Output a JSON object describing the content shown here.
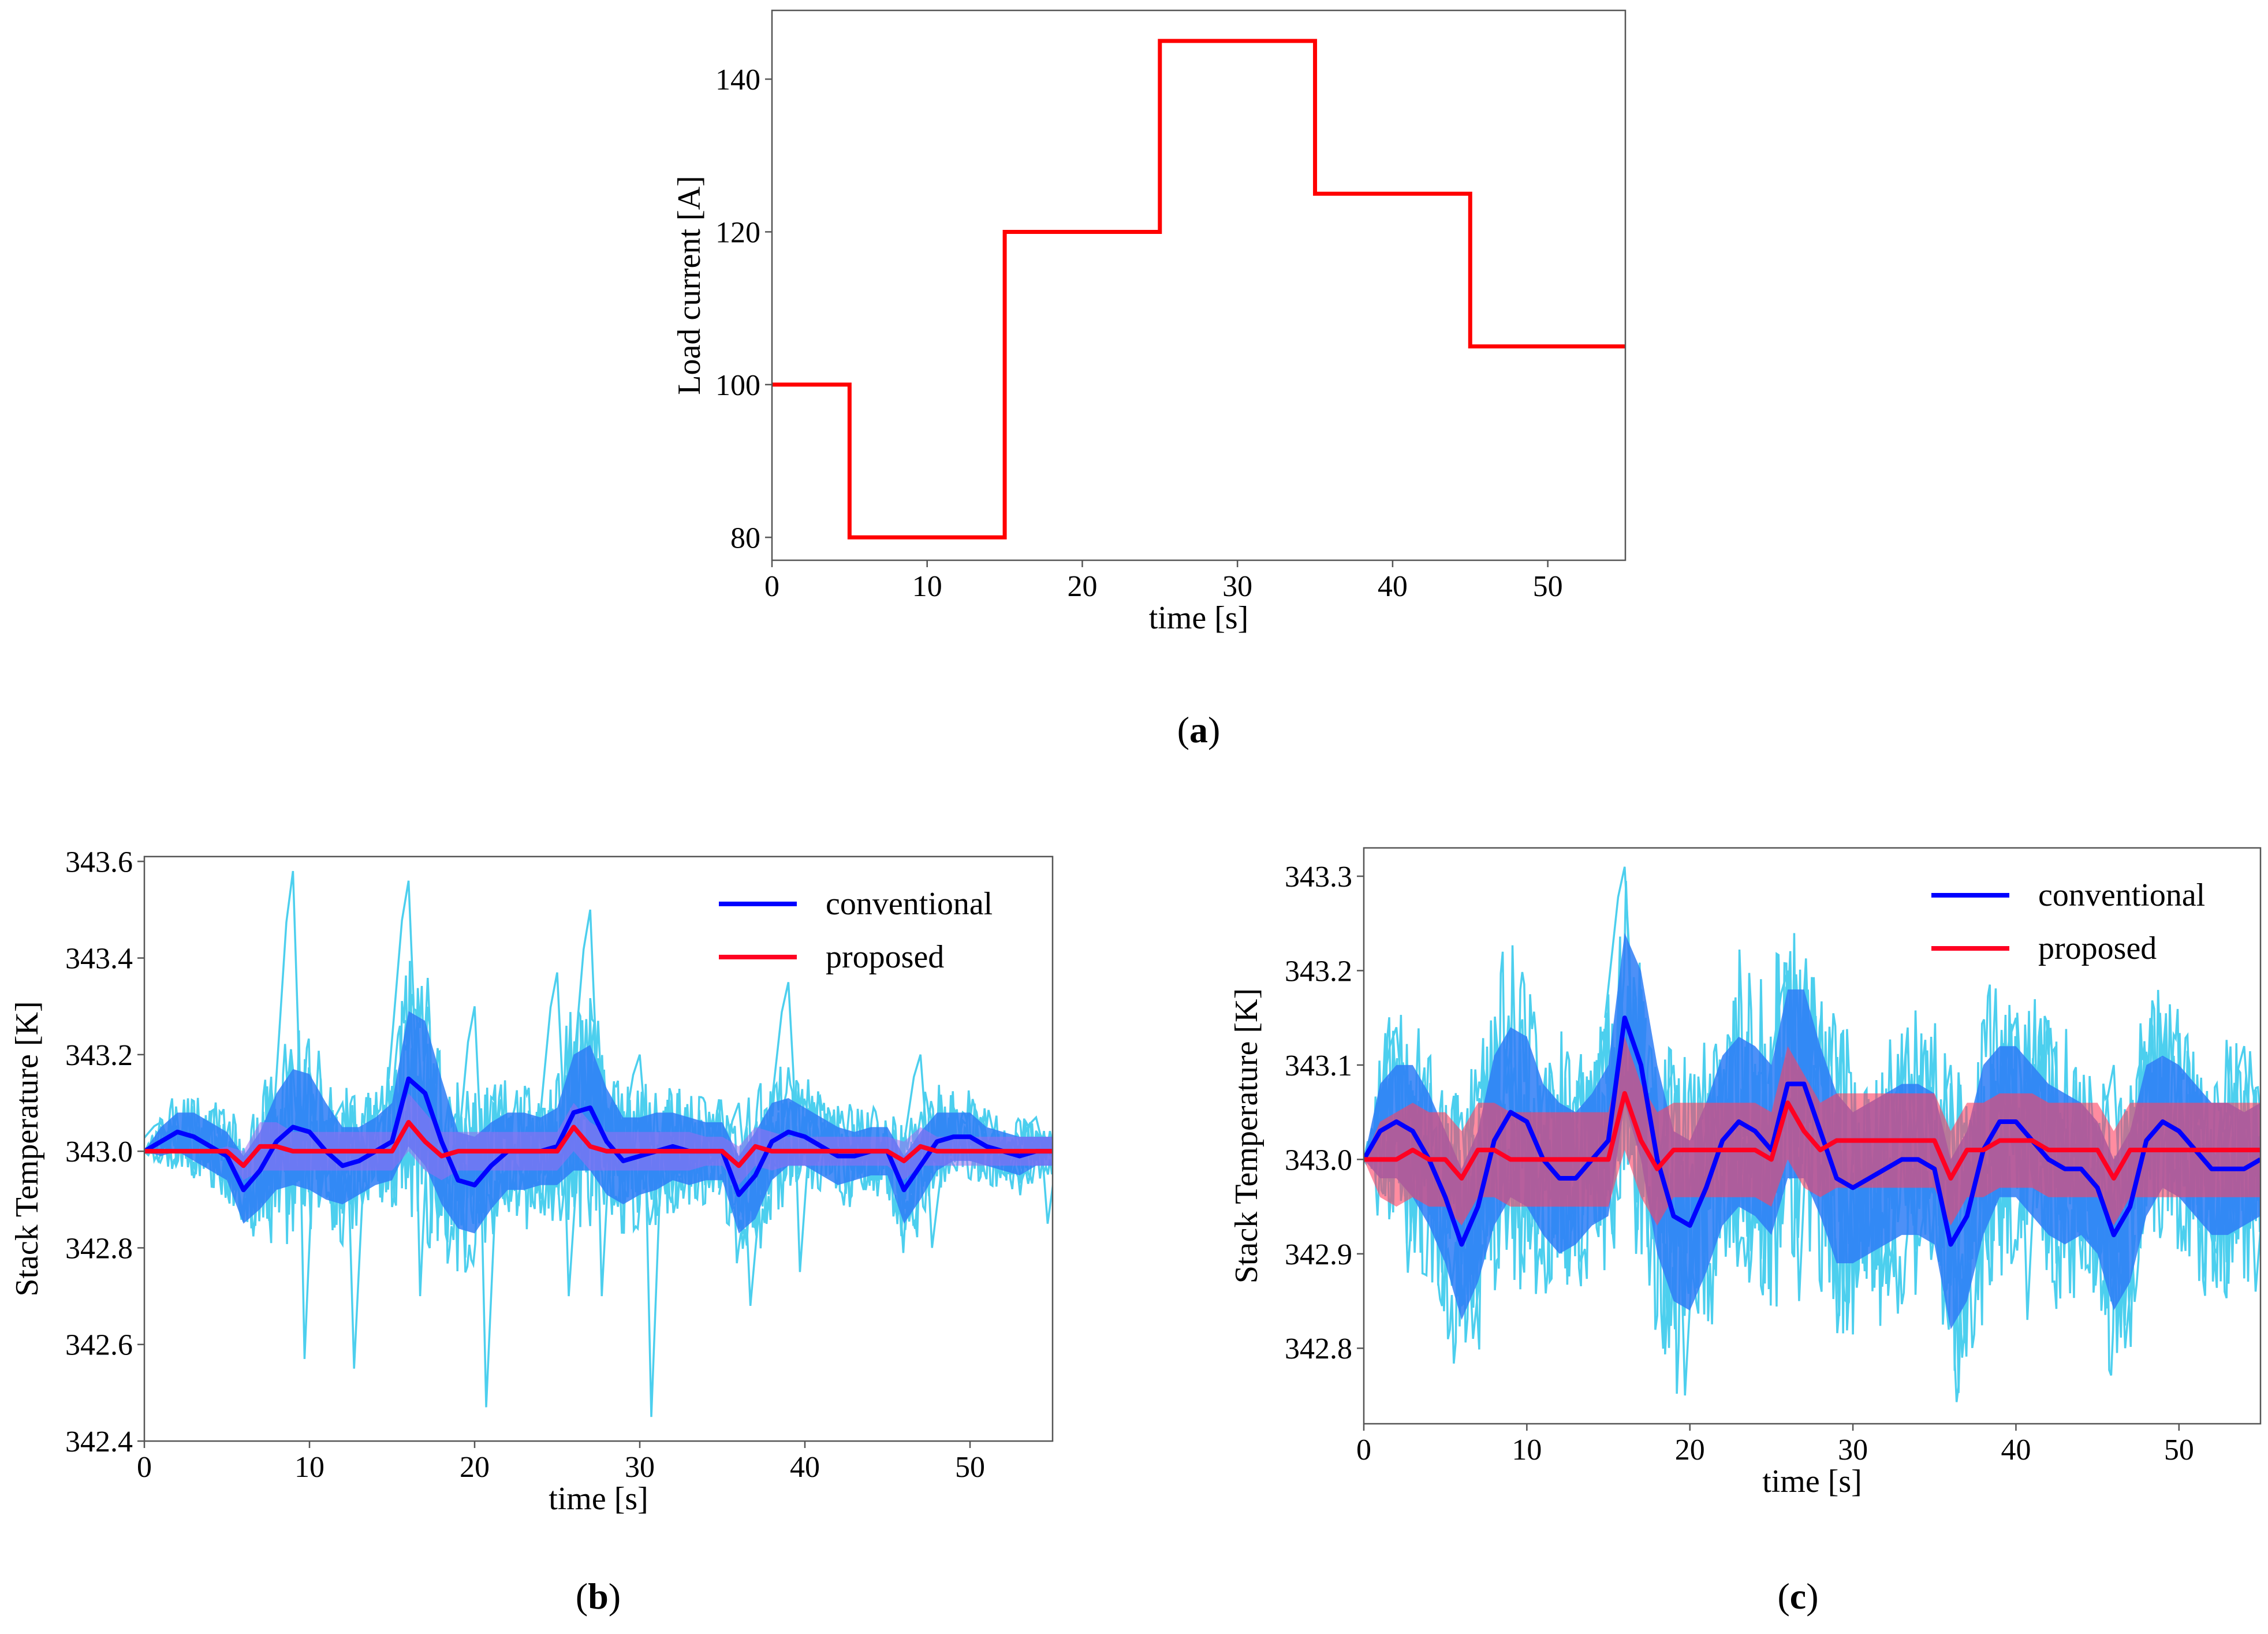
{
  "colors": {
    "step_line": "#ff0000",
    "conventional_mean": "#0000ff",
    "conventional_band": "#2e7cf6",
    "conventional_traces": "#4ccfee",
    "proposed_mean": "#ff0022",
    "proposed_band_b": "#9b6cf0",
    "proposed_band_c": "#ff4060",
    "axis": "#555555"
  },
  "chart_data": [
    {
      "id": "a",
      "type": "line",
      "panel_label": "a",
      "xlabel": "time [s]",
      "ylabel": "Load current [A]",
      "xlim": [
        0,
        55
      ],
      "ylim": [
        77,
        149
      ],
      "xticks": [
        "0",
        "10",
        "20",
        "30",
        "40",
        "50"
      ],
      "yticks": [
        "80",
        "100",
        "120",
        "140"
      ],
      "series": [
        {
          "name": "Load current",
          "style": "step",
          "x": [
            0,
            5,
            5,
            15,
            15,
            25,
            25,
            35,
            35,
            45,
            45,
            55
          ],
          "y": [
            100,
            100,
            80,
            80,
            120,
            120,
            145,
            145,
            125,
            125,
            105,
            105
          ]
        }
      ]
    },
    {
      "id": "b",
      "type": "line",
      "panel_label": "b",
      "xlabel": "time [s]",
      "ylabel": "Stack Temperature [K]",
      "xlim": [
        0,
        55
      ],
      "ylim": [
        342.4,
        343.61
      ],
      "xticks": [
        "0",
        "10",
        "20",
        "30",
        "40",
        "50"
      ],
      "yticks": [
        "342.4",
        "342.6",
        "342.8",
        "343.0",
        "343.2",
        "343.4",
        "343.6"
      ],
      "legend": {
        "position": "top-right",
        "entries": [
          "conventional",
          "proposed"
        ]
      },
      "series": [
        {
          "name": "conventional",
          "x": [
            0,
            1,
            2,
            3,
            4,
            5,
            6,
            7,
            8,
            9,
            10,
            11,
            12,
            13,
            14,
            15,
            16,
            17,
            18,
            19,
            20,
            21,
            22,
            23,
            24,
            25,
            26,
            27,
            28,
            29,
            30,
            31,
            32,
            33,
            34,
            35,
            36,
            37,
            38,
            39,
            40,
            41,
            42,
            43,
            44,
            45,
            46,
            47,
            48,
            49,
            50,
            51,
            52,
            53,
            54,
            55
          ],
          "y": [
            343.0,
            343.02,
            343.04,
            343.03,
            343.01,
            342.99,
            342.92,
            342.96,
            343.02,
            343.05,
            343.04,
            343.0,
            342.97,
            342.98,
            343.0,
            343.02,
            343.15,
            343.12,
            343.02,
            342.94,
            342.93,
            342.97,
            343.0,
            343.0,
            343.0,
            343.01,
            343.08,
            343.09,
            343.02,
            342.98,
            342.99,
            343.0,
            343.01,
            343.0,
            343.0,
            343.0,
            342.91,
            342.95,
            343.02,
            343.04,
            343.03,
            343.01,
            342.99,
            342.99,
            343.0,
            343.0,
            342.92,
            342.97,
            343.02,
            343.03,
            343.03,
            343.01,
            343.0,
            342.99,
            343.0,
            343.0
          ],
          "band_halfwidth": [
            0.0,
            0.03,
            0.04,
            0.05,
            0.05,
            0.05,
            0.07,
            0.08,
            0.1,
            0.12,
            0.12,
            0.1,
            0.08,
            0.07,
            0.07,
            0.08,
            0.14,
            0.15,
            0.13,
            0.1,
            0.1,
            0.09,
            0.08,
            0.08,
            0.07,
            0.08,
            0.12,
            0.13,
            0.11,
            0.09,
            0.08,
            0.08,
            0.07,
            0.07,
            0.06,
            0.06,
            0.08,
            0.09,
            0.08,
            0.07,
            0.06,
            0.06,
            0.06,
            0.05,
            0.05,
            0.05,
            0.07,
            0.07,
            0.06,
            0.05,
            0.05,
            0.04,
            0.04,
            0.04,
            0.03,
            0.03
          ],
          "traces_extent": [
            [
              1,
              343.06,
              342.97
            ],
            [
              9,
              343.58,
              342.57
            ],
            [
              12,
              343.1,
              342.55
            ],
            [
              16,
              343.56,
              342.7
            ],
            [
              20,
              343.3,
              342.47
            ],
            [
              25,
              343.37,
              342.7
            ],
            [
              27,
              343.5,
              342.7
            ],
            [
              30,
              343.2,
              342.45
            ],
            [
              36,
              343.1,
              342.68
            ],
            [
              39,
              343.35,
              342.75
            ],
            [
              47,
              343.2,
              342.8
            ],
            [
              54,
              343.07,
              342.85
            ]
          ]
        },
        {
          "name": "proposed",
          "x": [
            0,
            1,
            2,
            3,
            4,
            5,
            6,
            7,
            8,
            9,
            10,
            11,
            12,
            13,
            14,
            15,
            16,
            17,
            18,
            19,
            20,
            21,
            22,
            23,
            24,
            25,
            26,
            27,
            28,
            29,
            30,
            31,
            32,
            33,
            34,
            35,
            36,
            37,
            38,
            39,
            40,
            41,
            42,
            43,
            44,
            45,
            46,
            47,
            48,
            49,
            50,
            51,
            52,
            53,
            54,
            55
          ],
          "y": [
            343.0,
            343.0,
            343.0,
            343.0,
            343.0,
            343.0,
            342.97,
            343.01,
            343.01,
            343.0,
            343.0,
            343.0,
            343.0,
            343.0,
            343.0,
            343.0,
            343.06,
            343.02,
            342.99,
            343.0,
            343.0,
            343.0,
            343.0,
            343.0,
            343.0,
            343.0,
            343.05,
            343.01,
            343.0,
            343.0,
            343.0,
            343.0,
            343.0,
            343.0,
            343.0,
            343.0,
            342.97,
            343.01,
            343.0,
            343.0,
            343.0,
            343.0,
            343.0,
            343.0,
            343.0,
            343.0,
            342.98,
            343.01,
            343.0,
            343.0,
            343.0,
            343.0,
            343.0,
            343.0,
            343.0,
            343.0
          ],
          "band_halfwidth": [
            0.0,
            0.0,
            0.0,
            0.0,
            0.0,
            0.01,
            0.03,
            0.05,
            0.05,
            0.04,
            0.04,
            0.04,
            0.04,
            0.04,
            0.04,
            0.04,
            0.06,
            0.06,
            0.05,
            0.04,
            0.04,
            0.04,
            0.04,
            0.04,
            0.04,
            0.04,
            0.05,
            0.05,
            0.04,
            0.04,
            0.04,
            0.04,
            0.04,
            0.04,
            0.03,
            0.03,
            0.04,
            0.04,
            0.04,
            0.03,
            0.03,
            0.03,
            0.03,
            0.03,
            0.03,
            0.03,
            0.04,
            0.04,
            0.03,
            0.03,
            0.03,
            0.03,
            0.03,
            0.03,
            0.03,
            0.03
          ]
        }
      ]
    },
    {
      "id": "c",
      "type": "line",
      "panel_label": "c",
      "xlabel": "time [s]",
      "ylabel": "Stack Temperature [K]",
      "xlim": [
        0,
        55
      ],
      "ylim": [
        342.72,
        343.33
      ],
      "xticks": [
        "0",
        "10",
        "20",
        "30",
        "40",
        "50"
      ],
      "yticks": [
        "342.8",
        "342.9",
        "343.0",
        "343.1",
        "343.2",
        "343.3"
      ],
      "legend": {
        "position": "top-right",
        "entries": [
          "conventional",
          "proposed"
        ]
      },
      "series": [
        {
          "name": "conventional",
          "x": [
            0,
            1,
            2,
            3,
            4,
            5,
            6,
            7,
            8,
            9,
            10,
            11,
            12,
            13,
            14,
            15,
            16,
            17,
            18,
            19,
            20,
            21,
            22,
            23,
            24,
            25,
            26,
            27,
            28,
            29,
            30,
            31,
            32,
            33,
            34,
            35,
            36,
            37,
            38,
            39,
            40,
            41,
            42,
            43,
            44,
            45,
            46,
            47,
            48,
            49,
            50,
            51,
            52,
            53,
            54,
            55
          ],
          "y": [
            343.0,
            343.03,
            343.04,
            343.03,
            343.0,
            342.96,
            342.91,
            342.95,
            343.02,
            343.05,
            343.04,
            343.0,
            342.98,
            342.98,
            343.0,
            343.02,
            343.15,
            343.1,
            343.0,
            342.94,
            342.93,
            342.97,
            343.02,
            343.04,
            343.03,
            343.01,
            343.08,
            343.08,
            343.03,
            342.98,
            342.97,
            342.98,
            342.99,
            343.0,
            343.0,
            342.99,
            342.91,
            342.94,
            343.01,
            343.04,
            343.04,
            343.02,
            343.0,
            342.99,
            342.99,
            342.97,
            342.92,
            342.95,
            343.02,
            343.04,
            343.03,
            343.01,
            342.99,
            342.99,
            342.99,
            343.0
          ],
          "band_halfwidth": [
            0.0,
            0.05,
            0.06,
            0.07,
            0.07,
            0.07,
            0.08,
            0.08,
            0.09,
            0.09,
            0.09,
            0.08,
            0.08,
            0.07,
            0.07,
            0.08,
            0.09,
            0.1,
            0.1,
            0.09,
            0.09,
            0.09,
            0.09,
            0.09,
            0.09,
            0.09,
            0.1,
            0.1,
            0.09,
            0.09,
            0.08,
            0.08,
            0.08,
            0.08,
            0.08,
            0.08,
            0.09,
            0.09,
            0.09,
            0.08,
            0.08,
            0.08,
            0.08,
            0.08,
            0.07,
            0.07,
            0.08,
            0.08,
            0.08,
            0.07,
            0.07,
            0.07,
            0.07,
            0.07,
            0.06,
            0.06
          ],
          "traces_extent": [
            [
              2,
              343.14,
              342.88
            ],
            [
              6,
              343.05,
              342.81
            ],
            [
              16,
              343.31,
              342.9
            ],
            [
              19,
              343.1,
              342.75
            ],
            [
              26,
              343.2,
              342.85
            ],
            [
              36,
              343.1,
              342.79
            ],
            [
              40,
              343.15,
              342.83
            ],
            [
              46,
              343.1,
              342.8
            ],
            [
              54,
              343.12,
              342.86
            ]
          ]
        },
        {
          "name": "proposed",
          "x": [
            0,
            1,
            2,
            3,
            4,
            5,
            6,
            7,
            8,
            9,
            10,
            11,
            12,
            13,
            14,
            15,
            16,
            17,
            18,
            19,
            20,
            21,
            22,
            23,
            24,
            25,
            26,
            27,
            28,
            29,
            30,
            31,
            32,
            33,
            34,
            35,
            36,
            37,
            38,
            39,
            40,
            41,
            42,
            43,
            44,
            45,
            46,
            47,
            48,
            49,
            50,
            51,
            52,
            53,
            54,
            55
          ],
          "y": [
            343.0,
            343.0,
            343.0,
            343.01,
            343.0,
            343.0,
            342.98,
            343.01,
            343.01,
            343.0,
            343.0,
            343.0,
            343.0,
            343.0,
            343.0,
            343.0,
            343.07,
            343.02,
            342.99,
            343.01,
            343.01,
            343.01,
            343.01,
            343.01,
            343.01,
            343.0,
            343.06,
            343.03,
            343.01,
            343.02,
            343.02,
            343.02,
            343.02,
            343.02,
            343.02,
            343.02,
            342.98,
            343.01,
            343.01,
            343.02,
            343.02,
            343.02,
            343.01,
            343.01,
            343.01,
            343.01,
            342.98,
            343.01,
            343.01,
            343.01,
            343.01,
            343.01,
            343.01,
            343.01,
            343.01,
            343.01
          ],
          "band_halfwidth": [
            0.0,
            0.04,
            0.05,
            0.05,
            0.05,
            0.05,
            0.05,
            0.05,
            0.05,
            0.05,
            0.05,
            0.05,
            0.05,
            0.05,
            0.05,
            0.05,
            0.06,
            0.06,
            0.06,
            0.05,
            0.05,
            0.05,
            0.05,
            0.05,
            0.05,
            0.05,
            0.06,
            0.06,
            0.05,
            0.05,
            0.05,
            0.05,
            0.05,
            0.05,
            0.05,
            0.05,
            0.05,
            0.05,
            0.05,
            0.05,
            0.05,
            0.05,
            0.05,
            0.05,
            0.05,
            0.05,
            0.05,
            0.05,
            0.05,
            0.05,
            0.05,
            0.05,
            0.05,
            0.05,
            0.05,
            0.05
          ]
        }
      ]
    }
  ]
}
